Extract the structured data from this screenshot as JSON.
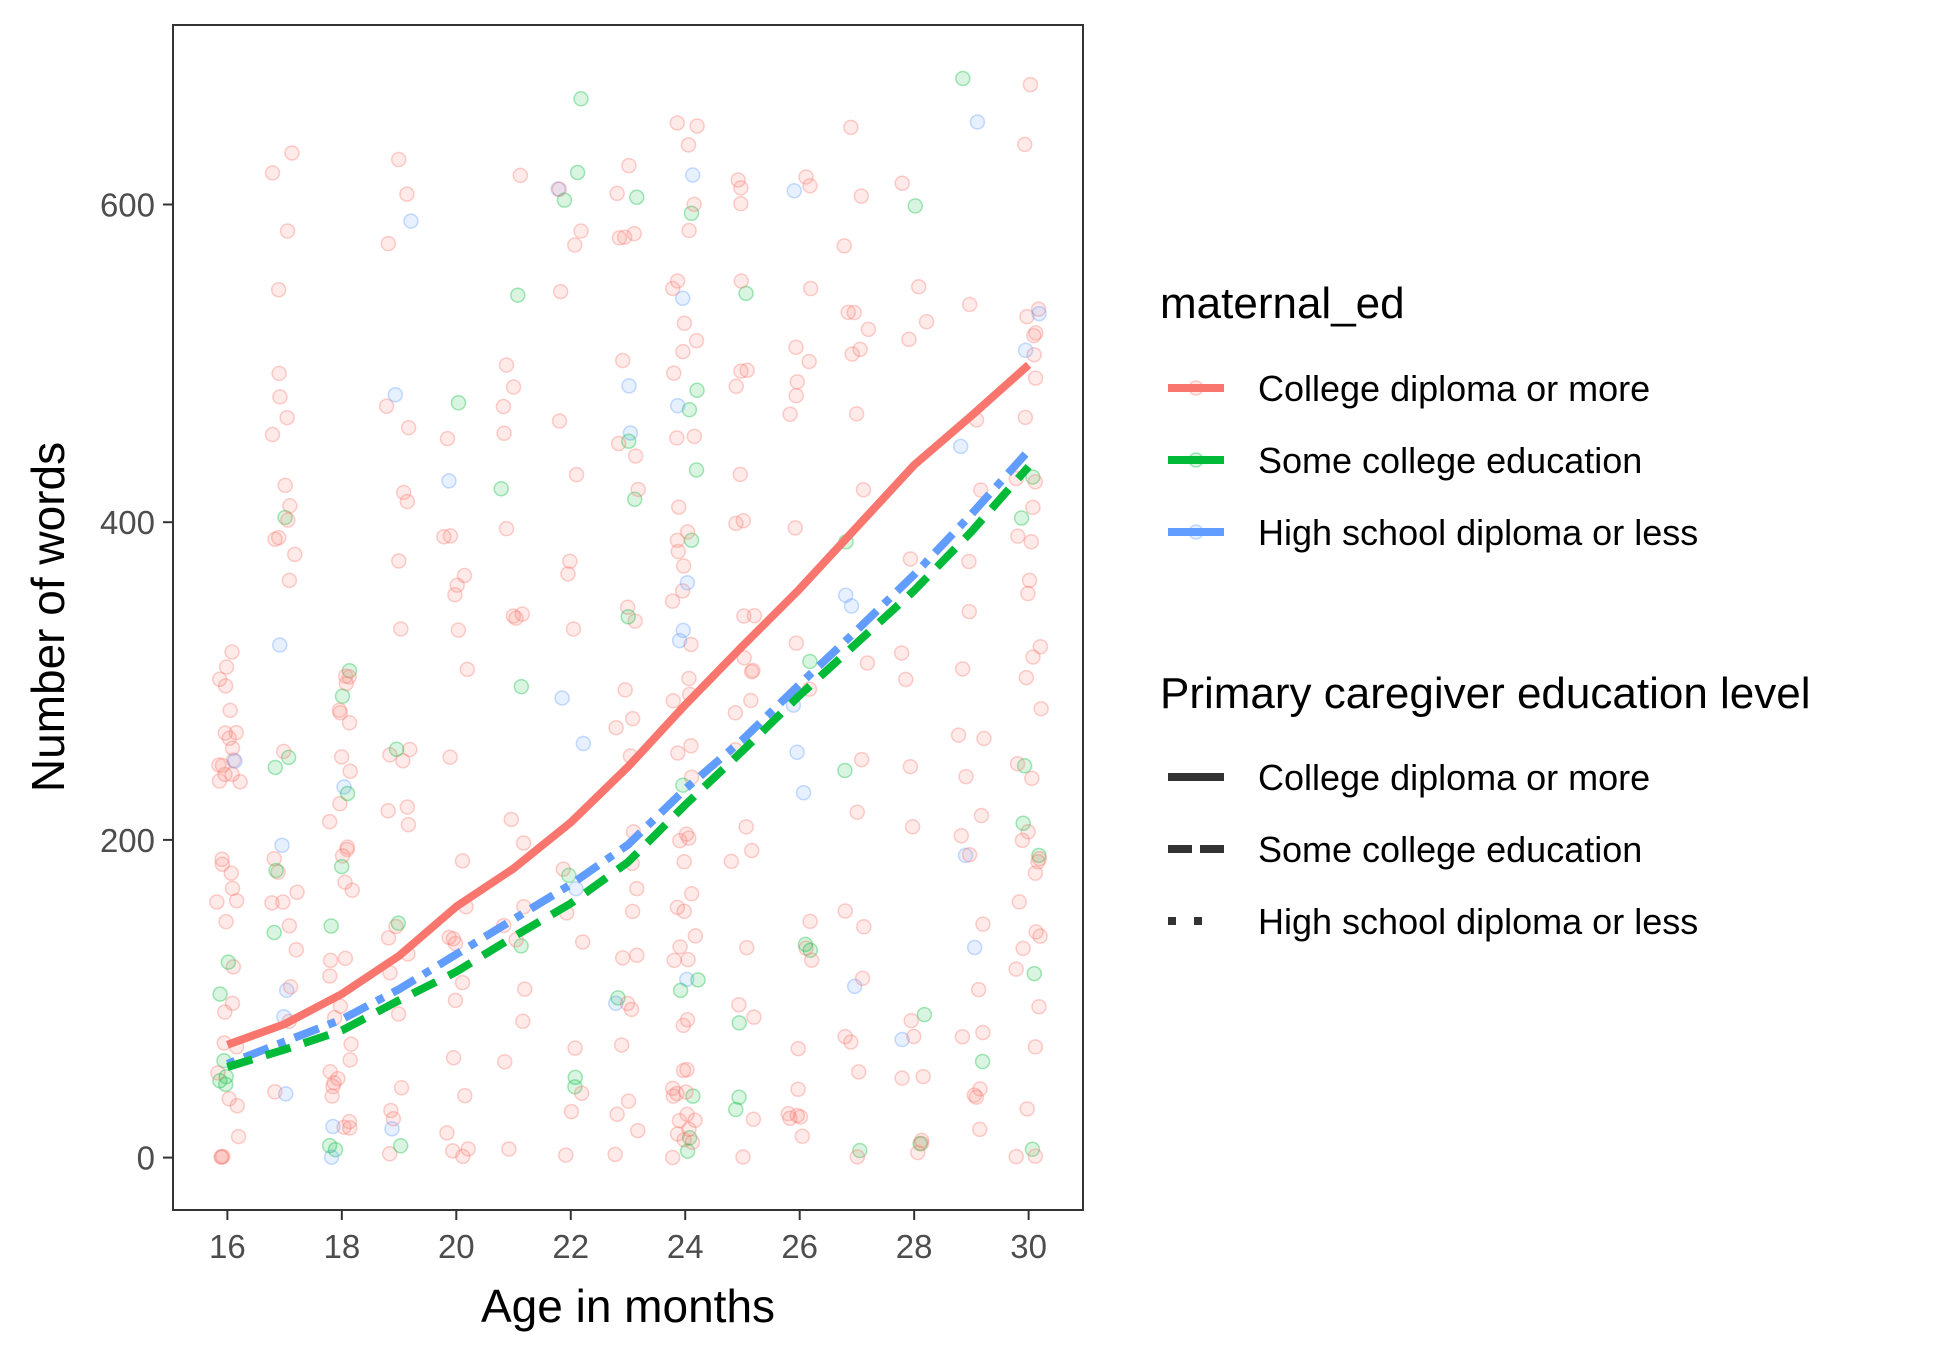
{
  "chart_data": {
    "type": "scatter",
    "xlabel": "Age in months",
    "ylabel": "Number of words",
    "x_ticks": [
      16,
      18,
      20,
      22,
      24,
      26,
      28,
      30
    ],
    "y_ticks": [
      0,
      200,
      400,
      600
    ],
    "xlim": [
      15.05,
      30.95
    ],
    "ylim": [
      -33,
      713
    ],
    "grid": false,
    "legend_position": "right",
    "legend_color": {
      "title": "maternal_ed",
      "entries": [
        {
          "label": "College diploma or more",
          "color": "#F8766D"
        },
        {
          "label": "Some college education",
          "color": "#00BA38"
        },
        {
          "label": "High school diploma or less",
          "color": "#619CFF"
        }
      ]
    },
    "legend_linetype": {
      "title": "Primary caregiver education level",
      "entries": [
        {
          "label": "College diploma or more",
          "linetype": "solid"
        },
        {
          "label": "Some college education",
          "linetype": "dashed"
        },
        {
          "label": "High school diploma or less",
          "linetype": "dotdash"
        }
      ]
    },
    "series": [
      {
        "name": "College diploma or more",
        "color": "#F8766D",
        "linetype": "solid",
        "x": [
          16,
          17,
          18,
          19,
          20,
          21,
          22,
          23,
          24,
          25,
          26,
          27,
          28,
          29,
          30
        ],
        "y": [
          71,
          84,
          103,
          127,
          158,
          182,
          211,
          246,
          285,
          322,
          358,
          397,
          436,
          467,
          499
        ]
      },
      {
        "name": "Some college education",
        "color": "#00BA38",
        "linetype": "dashed",
        "x": [
          16,
          17,
          18,
          19,
          20,
          21,
          22,
          23,
          24,
          25,
          26,
          27,
          28,
          29,
          30
        ],
        "y": [
          57,
          68,
          80,
          99,
          117,
          139,
          160,
          186,
          222,
          256,
          291,
          324,
          357,
          394,
          435
        ]
      },
      {
        "name": "High school diploma or less",
        "color": "#619CFF",
        "linetype": "dotdash",
        "x": [
          16,
          17,
          18,
          19,
          20,
          21,
          22,
          23,
          24,
          25,
          26,
          27,
          28,
          29,
          30
        ],
        "y": [
          59,
          73,
          87,
          106,
          128,
          150,
          172,
          197,
          232,
          263,
          298,
          332,
          367,
          405,
          445
        ]
      }
    ],
    "points": {
      "note_ages": [
        16,
        17,
        18,
        19,
        20,
        21,
        22,
        23,
        24,
        25,
        26,
        27,
        28,
        29,
        30
      ],
      "counts_per_age": [
        42,
        36,
        40,
        30,
        24,
        22,
        26,
        36,
        72,
        30,
        28,
        26,
        20,
        26,
        46
      ],
      "spread_max": [
        320,
        640,
        310,
        660,
        490,
        620,
        675,
        680,
        675,
        675,
        660,
        675,
        660,
        680,
        680
      ],
      "point_alpha": 0.15
    }
  }
}
